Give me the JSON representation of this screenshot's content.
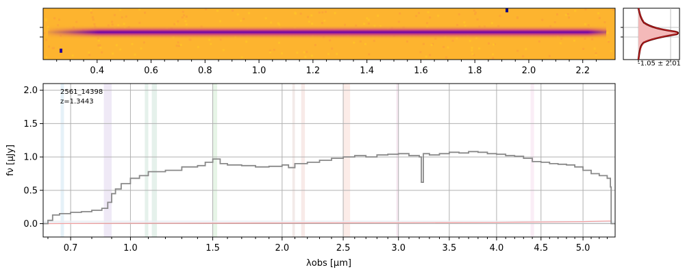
{
  "chart_data": [
    {
      "type": "heatmap",
      "panel": "spectrum-2d",
      "x_ticks": [
        "0.4",
        "0.6",
        "0.8",
        "1.0",
        "1.2",
        "1.4",
        "1.6",
        "1.8",
        "2.0",
        "2.2"
      ],
      "x_tick_values": [
        0.4,
        0.6,
        0.8,
        1.0,
        1.2,
        1.4,
        1.6,
        1.8,
        2.0,
        2.2
      ],
      "xlim": [
        0.2,
        2.32
      ],
      "colormap": "plasma",
      "colors": {
        "background": "#fdb42f",
        "trace": "#6a00a8",
        "trace_edge": "#cc4778"
      }
    },
    {
      "type": "line",
      "panel": "profile",
      "annotation": "-1.05 ± 2.01",
      "colors": {
        "fill": "#f4b9b9",
        "outline": "#5a0000",
        "model": "#d62728"
      }
    },
    {
      "type": "line",
      "panel": "spectrum-1d",
      "title": "2561_14398",
      "subtitle": "z=1.3443",
      "xlabel": "λobs [μm]",
      "ylabel": "fν [μJy]",
      "ylim": [
        -0.2,
        2.1
      ],
      "xlim": [
        0.58,
        5.4
      ],
      "x_scale": "nonlinear (sqrt-like)",
      "x_ticks": [
        0.7,
        1.0,
        1.5,
        2.0,
        2.5,
        3.0,
        3.5,
        4.0,
        4.5,
        5.0
      ],
      "x_tick_labels": [
        "0.7",
        "1.0",
        "1.5",
        "2.0",
        "2.5",
        "3.0",
        "3.5",
        "4.0",
        "4.5",
        "5.0"
      ],
      "y_ticks": [
        0.0,
        0.5,
        1.0,
        1.5,
        2.0
      ],
      "y_tick_labels": [
        "0.0",
        "0.5",
        "1.0",
        "1.5",
        "2.0"
      ],
      "grid": true,
      "series": [
        {
          "style": "steps",
          "color": "#888888",
          "x": [
            0.58,
            0.6,
            0.62,
            0.65,
            0.7,
            0.75,
            0.8,
            0.85,
            0.88,
            0.9,
            0.92,
            0.95,
            1.0,
            1.05,
            1.1,
            1.2,
            1.3,
            1.4,
            1.45,
            1.5,
            1.55,
            1.6,
            1.7,
            1.8,
            1.9,
            2.0,
            2.05,
            2.1,
            2.2,
            2.3,
            2.4,
            2.5,
            2.6,
            2.7,
            2.8,
            2.9,
            3.0,
            3.1,
            3.2,
            3.22,
            3.24,
            3.3,
            3.4,
            3.5,
            3.6,
            3.7,
            3.8,
            3.9,
            4.0,
            4.1,
            4.2,
            4.3,
            4.4,
            4.5,
            4.6,
            4.7,
            4.8,
            4.9,
            5.0,
            5.1,
            5.2,
            5.3,
            5.34,
            5.35,
            5.4
          ],
          "y": [
            0.0,
            0.05,
            0.13,
            0.15,
            0.17,
            0.18,
            0.2,
            0.23,
            0.32,
            0.45,
            0.52,
            0.6,
            0.68,
            0.72,
            0.78,
            0.8,
            0.85,
            0.87,
            0.92,
            0.97,
            0.9,
            0.88,
            0.87,
            0.85,
            0.86,
            0.88,
            0.84,
            0.9,
            0.92,
            0.95,
            0.98,
            1.0,
            1.02,
            1.0,
            1.03,
            1.04,
            1.05,
            1.02,
            1.0,
            0.62,
            1.05,
            1.03,
            1.05,
            1.07,
            1.06,
            1.08,
            1.07,
            1.05,
            1.04,
            1.02,
            1.01,
            0.98,
            0.93,
            0.92,
            0.9,
            0.89,
            0.88,
            0.85,
            0.8,
            0.75,
            0.72,
            0.68,
            0.55,
            0.0,
            0.0
          ]
        },
        {
          "style": "line",
          "color": "#f4a0a0",
          "x": [
            0.6,
            1.0,
            2.0,
            3.0,
            4.0,
            5.0,
            5.35
          ],
          "y": [
            0.0,
            0.005,
            0.01,
            0.015,
            0.02,
            0.03,
            0.04
          ]
        }
      ],
      "bands": [
        {
          "x0": 0.655,
          "x1": 0.67,
          "color": "#cfe6f3"
        },
        {
          "x0": 0.86,
          "x1": 0.9,
          "color": "#e2d7ee"
        },
        {
          "x0": 1.08,
          "x1": 1.1,
          "color": "#cfe6da"
        },
        {
          "x0": 1.12,
          "x1": 1.15,
          "color": "#cfe6da"
        },
        {
          "x0": 1.5,
          "x1": 1.53,
          "color": "#d3ecd3"
        },
        {
          "x0": 2.08,
          "x1": 2.1,
          "color": "#ead9d6"
        },
        {
          "x0": 2.15,
          "x1": 2.18,
          "color": "#f3d9d6"
        },
        {
          "x0": 2.5,
          "x1": 2.56,
          "color": "#f9ddd6"
        },
        {
          "x0": 2.98,
          "x1": 3.0,
          "color": "#efd3e3"
        },
        {
          "x0": 4.38,
          "x1": 4.42,
          "color": "#f6deee"
        }
      ]
    }
  ]
}
